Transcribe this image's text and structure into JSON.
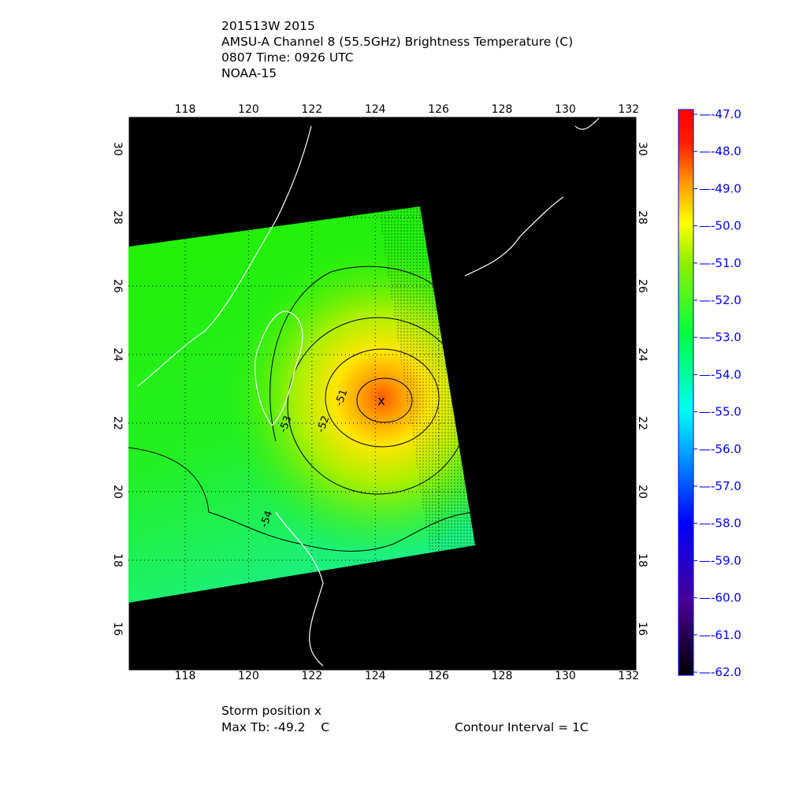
{
  "title": {
    "line1": "201513W 2015",
    "line2": "AMSU-A Channel 8 (55.5GHz) Brightness Temperature (C)",
    "line3": "0807 Time: 0926 UTC",
    "line4": "NOAA-15"
  },
  "map": {
    "lon_ticks": [
      "118",
      "120",
      "122",
      "124",
      "126",
      "128",
      "130",
      "132"
    ],
    "lat_ticks": [
      "16",
      "18",
      "20",
      "22",
      "24",
      "26",
      "28",
      "30"
    ],
    "lon_range": [
      116.2,
      132.25
    ],
    "lat_range": [
      14.8,
      30.9
    ],
    "storm_position": {
      "lon": 124.2,
      "lat": 22.7,
      "marker": "x"
    },
    "contour_labels": [
      "-51",
      "-52",
      "-53",
      "-54"
    ],
    "background_color": "#000000",
    "coastline_color": "#ffffff"
  },
  "colorbar": {
    "ticks": [
      "-47.0",
      "-48.0",
      "-49.0",
      "-50.0",
      "-51.0",
      "-52.0",
      "-53.0",
      "-54.0",
      "-55.0",
      "-56.0",
      "-57.0",
      "-58.0",
      "-59.0",
      "-60.0",
      "-61.0",
      "-62.0"
    ],
    "range": [
      -62.0,
      -47.0
    ],
    "tick_color": "#0000ff"
  },
  "footer": {
    "storm_position": "Storm position x",
    "max_tb": "Max Tb: -49.2    C",
    "contour_interval": "Contour Interval = 1C"
  }
}
